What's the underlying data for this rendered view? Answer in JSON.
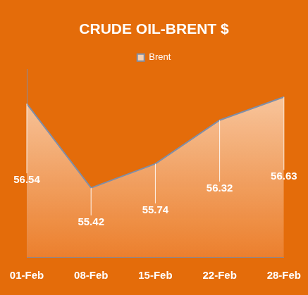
{
  "chart_data": {
    "type": "area",
    "title": "CRUDE OIL-BRENT $",
    "categories": [
      "01-Feb",
      "08-Feb",
      "15-Feb",
      "22-Feb",
      "28-Feb"
    ],
    "series": [
      {
        "name": "Brent",
        "color": "#7f8ea8",
        "values": [
          56.54,
          55.42,
          55.74,
          56.32,
          56.63
        ]
      }
    ],
    "ylim": [
      54.5,
      57
    ],
    "grid": false,
    "legend": "top",
    "data_labels": true,
    "tick_labels": "x"
  }
}
